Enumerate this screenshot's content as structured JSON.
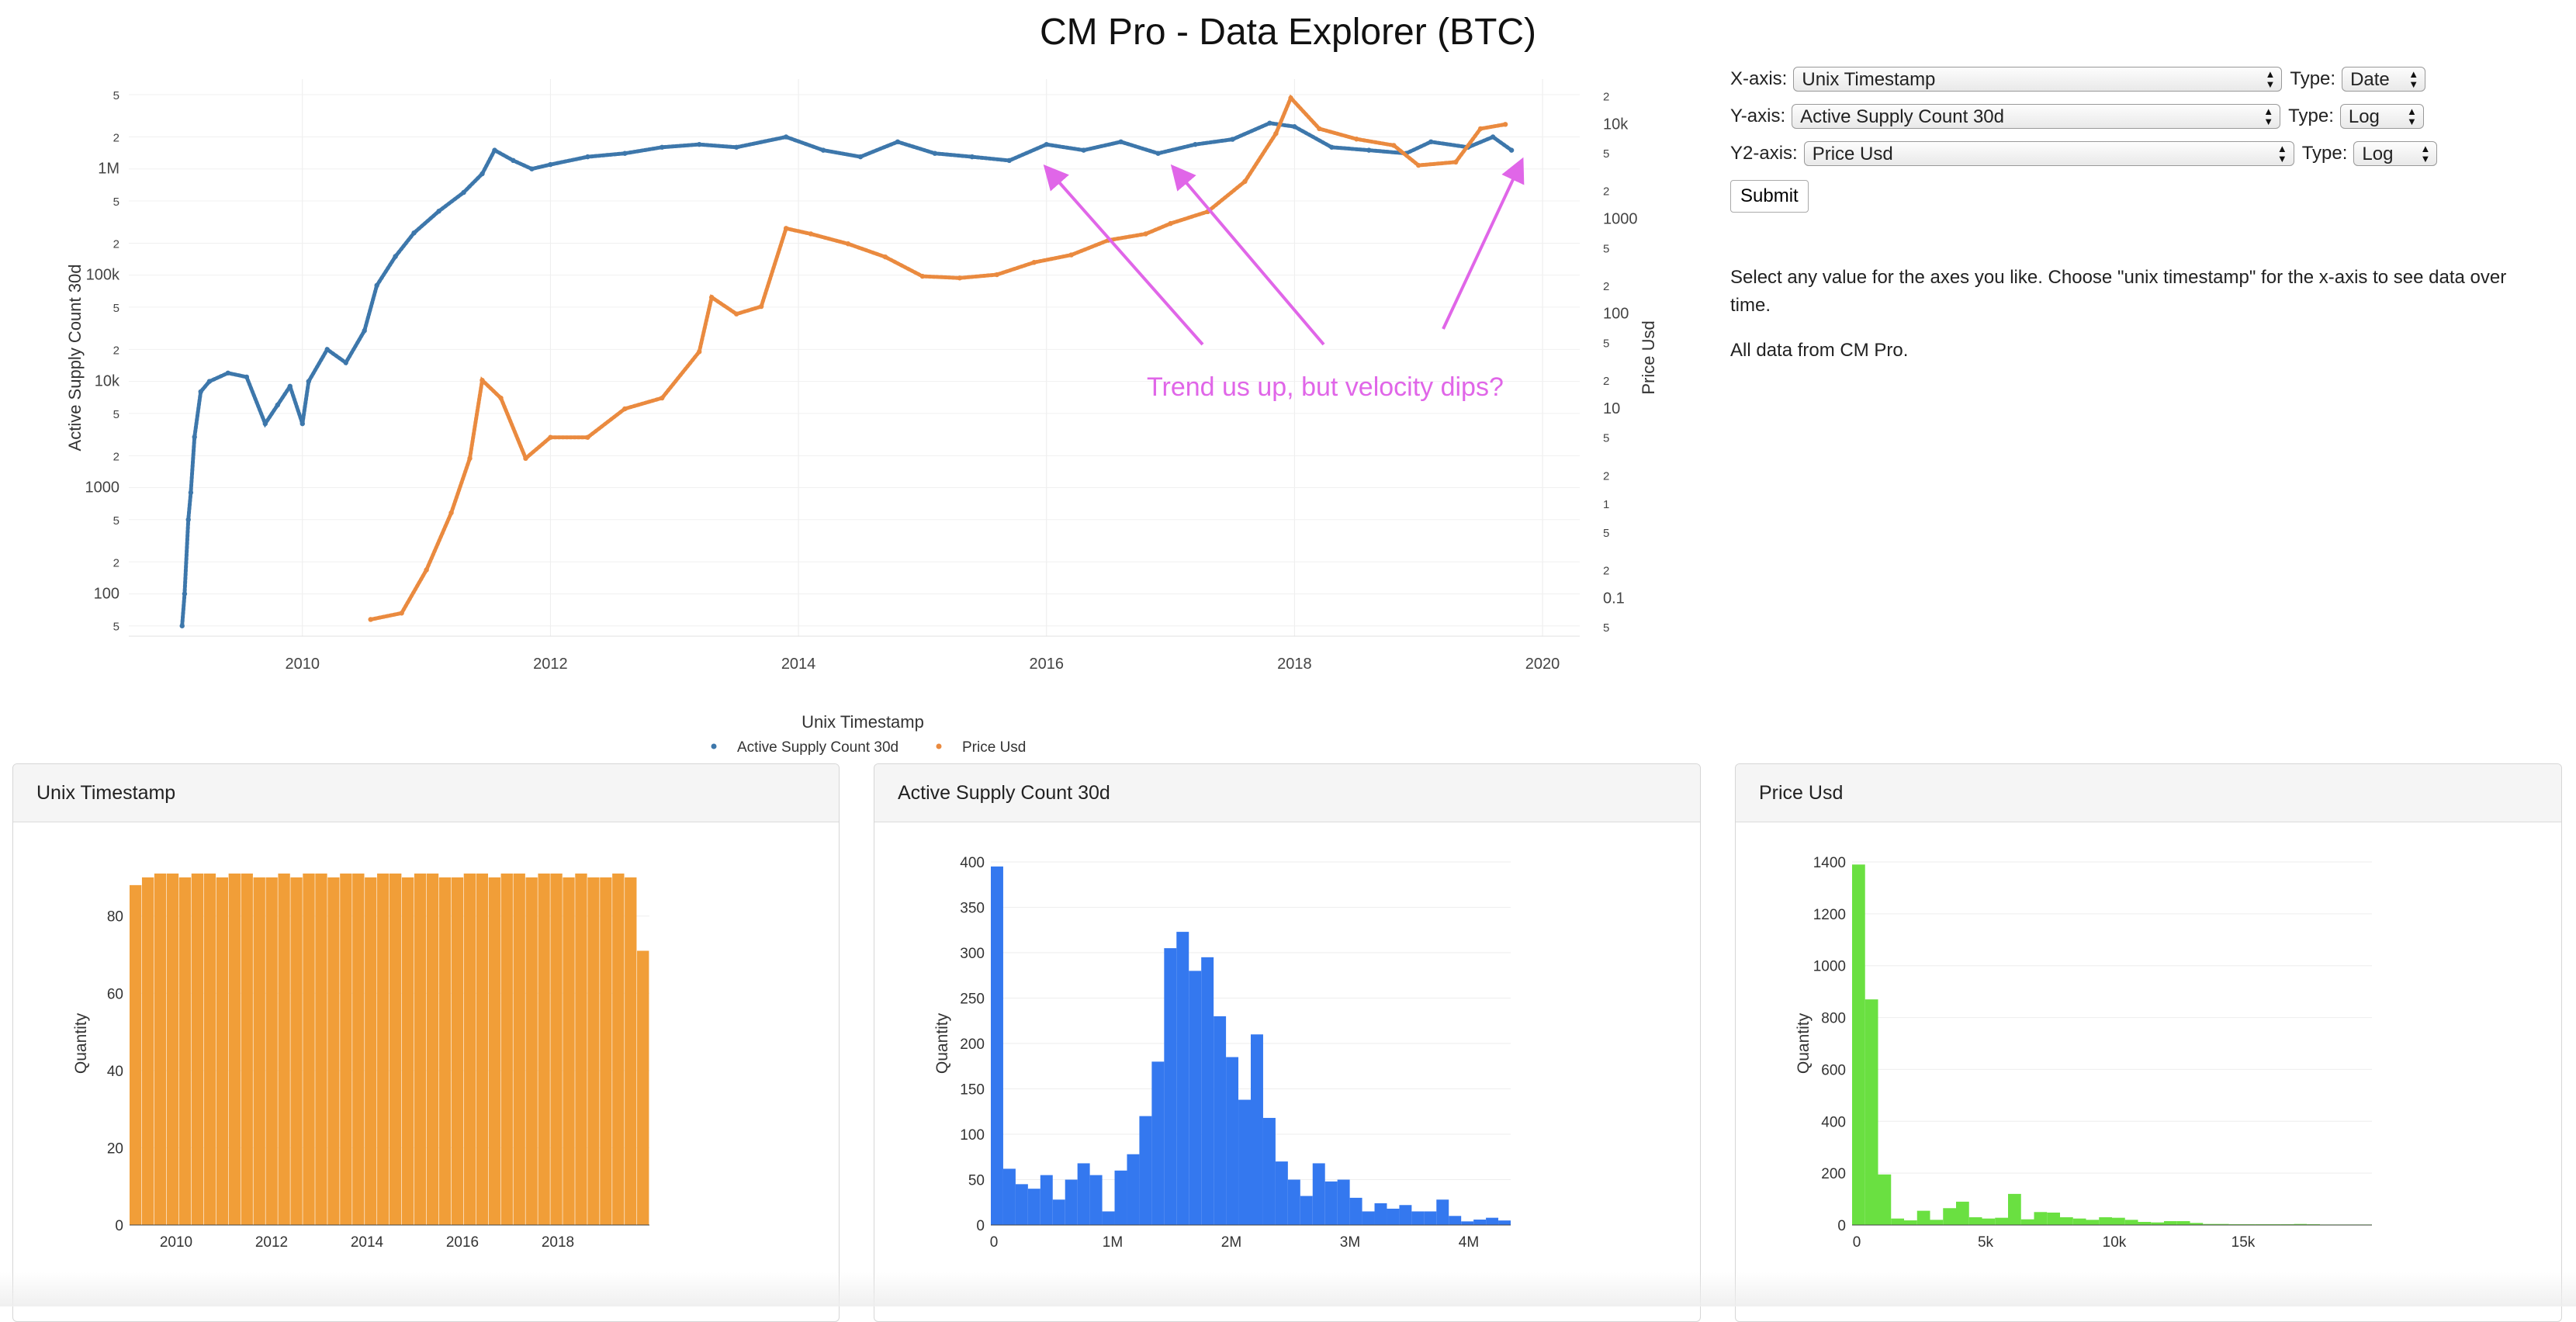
{
  "page": {
    "title": "CM Pro - Data Explorer (BTC)"
  },
  "controls": {
    "x_axis_label": "X-axis:",
    "x_axis_value": "Unix Timestamp",
    "y_axis_label": "Y-axis:",
    "y_axis_value": "Active Supply Count 30d",
    "y2_axis_label": "Y2-axis:",
    "y2_axis_value": "Price Usd",
    "type_label": "Type:",
    "x_type": "Date",
    "y_type": "Log",
    "y2_type": "Log",
    "submit_label": "Submit"
  },
  "help": {
    "line1": "Select any value for the axes you like. Choose \"unix timestamp\" for the x-axis to see data over time.",
    "line2": "All data from CM Pro."
  },
  "annotation": {
    "text": "Trend us up, but velocity dips?",
    "color": "#e066e8"
  },
  "colors": {
    "series1": "#3d77ab",
    "series2": "#ea8a3f",
    "hist1": "#f19e38",
    "hist2": "#3478ef",
    "hist3": "#6ae041"
  },
  "chart_data": [
    {
      "type": "scatter",
      "xlabel": "Unix Timestamp",
      "ylabel": "Active Supply Count 30d",
      "y2label": "Price Usd",
      "xlim": [
        2008.6,
        2020.3
      ],
      "ylim": [
        40,
        7000000
      ],
      "y2lim": [
        0.04,
        30000
      ],
      "yscale": "log",
      "y2scale": "log",
      "x_ticks": [
        "2010",
        "2012",
        "2014",
        "2016",
        "2018",
        "2020"
      ],
      "y_ticks": [
        {
          "v": 50,
          "t": "5"
        },
        {
          "v": 100,
          "t": "100"
        },
        {
          "v": 200,
          "t": "2"
        },
        {
          "v": 500,
          "t": "5"
        },
        {
          "v": 1000,
          "t": "1000"
        },
        {
          "v": 2000,
          "t": "2"
        },
        {
          "v": 5000,
          "t": "5"
        },
        {
          "v": 10000,
          "t": "10k"
        },
        {
          "v": 20000,
          "t": "2"
        },
        {
          "v": 50000,
          "t": "5"
        },
        {
          "v": 100000,
          "t": "100k"
        },
        {
          "v": 200000,
          "t": "2"
        },
        {
          "v": 500000,
          "t": "5"
        },
        {
          "v": 1000000,
          "t": "1M"
        },
        {
          "v": 2000000,
          "t": "2"
        },
        {
          "v": 5000000,
          "t": "5"
        }
      ],
      "y2_ticks": [
        {
          "v": 0.05,
          "t": "5"
        },
        {
          "v": 0.1,
          "t": "0.1"
        },
        {
          "v": 0.2,
          "t": "2"
        },
        {
          "v": 0.5,
          "t": "5"
        },
        {
          "v": 1,
          "t": "1"
        },
        {
          "v": 2,
          "t": "2"
        },
        {
          "v": 5,
          "t": "5"
        },
        {
          "v": 10,
          "t": "10"
        },
        {
          "v": 20,
          "t": "2"
        },
        {
          "v": 50,
          "t": "5"
        },
        {
          "v": 100,
          "t": "100"
        },
        {
          "v": 200,
          "t": "2"
        },
        {
          "v": 500,
          "t": "5"
        },
        {
          "v": 1000,
          "t": "1000"
        },
        {
          "v": 2000,
          "t": "2"
        },
        {
          "v": 5000,
          "t": "5"
        },
        {
          "v": 10000,
          "t": "10k"
        },
        {
          "v": 20000,
          "t": "2"
        }
      ],
      "legend_position": "bottom-center",
      "series": [
        {
          "name": "Active Supply Count 30d",
          "axis": "y",
          "points": [
            [
              2009.03,
              50
            ],
            [
              2009.05,
              100
            ],
            [
              2009.08,
              500
            ],
            [
              2009.1,
              900
            ],
            [
              2009.13,
              3000
            ],
            [
              2009.18,
              8000
            ],
            [
              2009.25,
              10000
            ],
            [
              2009.4,
              12000
            ],
            [
              2009.55,
              11000
            ],
            [
              2009.7,
              4000
            ],
            [
              2009.8,
              6000
            ],
            [
              2009.9,
              9000
            ],
            [
              2010.0,
              4000
            ],
            [
              2010.05,
              10000
            ],
            [
              2010.2,
              20000
            ],
            [
              2010.35,
              15000
            ],
            [
              2010.5,
              30000
            ],
            [
              2010.6,
              80000
            ],
            [
              2010.75,
              150000
            ],
            [
              2010.9,
              250000
            ],
            [
              2011.1,
              400000
            ],
            [
              2011.3,
              600000
            ],
            [
              2011.45,
              900000
            ],
            [
              2011.55,
              1500000
            ],
            [
              2011.7,
              1200000
            ],
            [
              2011.85,
              1000000
            ],
            [
              2012.0,
              1100000
            ],
            [
              2012.3,
              1300000
            ],
            [
              2012.6,
              1400000
            ],
            [
              2012.9,
              1600000
            ],
            [
              2013.2,
              1700000
            ],
            [
              2013.5,
              1600000
            ],
            [
              2013.9,
              2000000
            ],
            [
              2014.2,
              1500000
            ],
            [
              2014.5,
              1300000
            ],
            [
              2014.8,
              1800000
            ],
            [
              2015.1,
              1400000
            ],
            [
              2015.4,
              1300000
            ],
            [
              2015.7,
              1200000
            ],
            [
              2016.0,
              1700000
            ],
            [
              2016.3,
              1500000
            ],
            [
              2016.6,
              1800000
            ],
            [
              2016.9,
              1400000
            ],
            [
              2017.2,
              1700000
            ],
            [
              2017.5,
              1900000
            ],
            [
              2017.8,
              2700000
            ],
            [
              2018.0,
              2500000
            ],
            [
              2018.3,
              1600000
            ],
            [
              2018.6,
              1500000
            ],
            [
              2018.9,
              1400000
            ],
            [
              2019.1,
              1800000
            ],
            [
              2019.4,
              1600000
            ],
            [
              2019.6,
              2000000
            ],
            [
              2019.75,
              1500000
            ]
          ]
        },
        {
          "name": "Price Usd",
          "axis": "y2",
          "points": [
            [
              2010.55,
              0.06
            ],
            [
              2010.8,
              0.07
            ],
            [
              2011.0,
              0.2
            ],
            [
              2011.2,
              0.8
            ],
            [
              2011.35,
              3
            ],
            [
              2011.45,
              20
            ],
            [
              2011.6,
              13
            ],
            [
              2011.8,
              3
            ],
            [
              2012.0,
              5
            ],
            [
              2012.3,
              5
            ],
            [
              2012.6,
              10
            ],
            [
              2012.9,
              13
            ],
            [
              2013.2,
              40
            ],
            [
              2013.3,
              150
            ],
            [
              2013.5,
              100
            ],
            [
              2013.7,
              120
            ],
            [
              2013.9,
              800
            ],
            [
              2014.1,
              700
            ],
            [
              2014.4,
              550
            ],
            [
              2014.7,
              400
            ],
            [
              2015.0,
              250
            ],
            [
              2015.3,
              240
            ],
            [
              2015.6,
              260
            ],
            [
              2015.9,
              350
            ],
            [
              2016.2,
              420
            ],
            [
              2016.5,
              600
            ],
            [
              2016.8,
              700
            ],
            [
              2017.0,
              900
            ],
            [
              2017.3,
              1200
            ],
            [
              2017.6,
              2500
            ],
            [
              2017.85,
              8000
            ],
            [
              2017.97,
              19000
            ],
            [
              2018.2,
              9000
            ],
            [
              2018.5,
              7000
            ],
            [
              2018.8,
              6000
            ],
            [
              2019.0,
              3700
            ],
            [
              2019.3,
              4000
            ],
            [
              2019.5,
              9000
            ],
            [
              2019.7,
              10000
            ]
          ]
        }
      ]
    },
    {
      "type": "bar",
      "title": "Unix Timestamp",
      "ylabel": "Quantity",
      "ylim": [
        0,
        94
      ],
      "y_ticks": [
        0,
        20,
        40,
        60,
        80
      ],
      "x_ticks": [
        "2010",
        "2012",
        "2014",
        "2016",
        "2018"
      ],
      "values": [
        88,
        90,
        91,
        91,
        90,
        91,
        91,
        90,
        91,
        91,
        90,
        90,
        91,
        90,
        91,
        91,
        90,
        91,
        91,
        90,
        91,
        91,
        90,
        91,
        91,
        90,
        90,
        91,
        91,
        90,
        91,
        91,
        90,
        91,
        91,
        90,
        91,
        90,
        90,
        91,
        90,
        71
      ]
    },
    {
      "type": "bar",
      "title": "Active Supply Count 30d",
      "ylabel": "Quantity",
      "ylim": [
        0,
        400
      ],
      "y_ticks": [
        0,
        50,
        100,
        150,
        200,
        250,
        300,
        350,
        400
      ],
      "x_ticks": [
        "0",
        "1M",
        "2M",
        "3M",
        "4M"
      ],
      "values": [
        395,
        62,
        45,
        40,
        55,
        28,
        50,
        68,
        55,
        15,
        60,
        78,
        120,
        180,
        305,
        323,
        280,
        295,
        230,
        185,
        138,
        210,
        118,
        70,
        50,
        32,
        68,
        48,
        50,
        30,
        15,
        24,
        18,
        22,
        15,
        15,
        28,
        10,
        4,
        6,
        8,
        5
      ]
    },
    {
      "type": "bar",
      "title": "Price Usd",
      "ylabel": "Quantity",
      "ylim": [
        0,
        1400
      ],
      "y_ticks": [
        0,
        200,
        400,
        600,
        800,
        1000,
        1200,
        1400
      ],
      "x_ticks": [
        "0",
        "5k",
        "10k",
        "15k"
      ],
      "values": [
        1390,
        870,
        195,
        25,
        18,
        55,
        20,
        65,
        90,
        30,
        25,
        28,
        120,
        22,
        50,
        48,
        30,
        25,
        20,
        30,
        28,
        20,
        12,
        10,
        15,
        15,
        8,
        4,
        4,
        3,
        3,
        3,
        3,
        3,
        4,
        3,
        2,
        2,
        2,
        2
      ]
    }
  ]
}
